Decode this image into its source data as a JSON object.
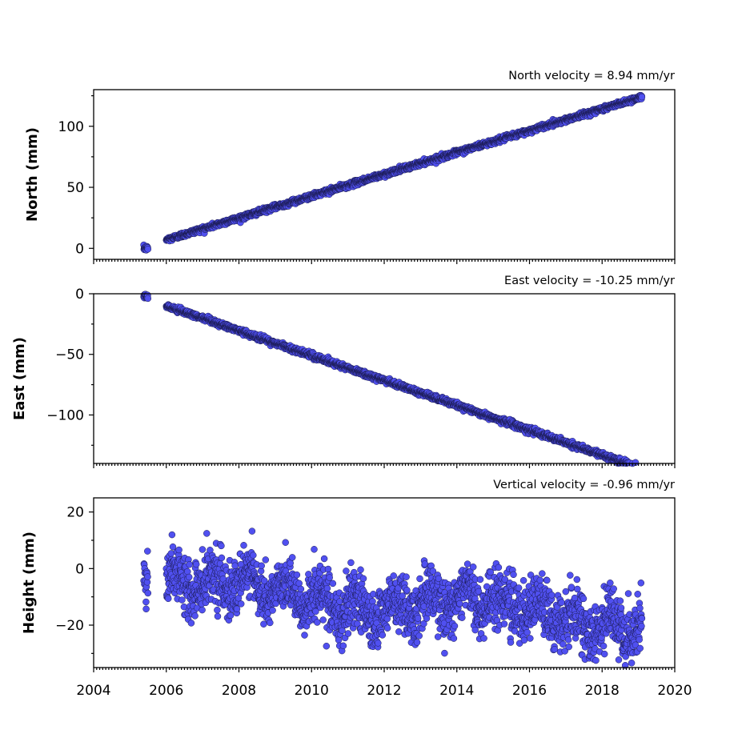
{
  "chart_data": [
    {
      "type": "scatter",
      "title": "North velocity = 8.94 mm/yr",
      "ylabel": "North (mm)",
      "xlim": [
        2004,
        2020
      ],
      "ylim": [
        -9,
        130
      ],
      "yticks": [
        0,
        50,
        100
      ],
      "tick_labels": [
        "0",
        "50",
        "100"
      ],
      "color": "#5050f0",
      "start": 2005.38,
      "end": 2019.1,
      "series": [
        {
          "trend": {
            "velocity_mm_per_yr": 8.94,
            "value_at_2006": 7.0
          },
          "gap": [
            2005.5,
            2006.0
          ],
          "noise_mm": 1.0
        }
      ]
    },
    {
      "type": "scatter",
      "title": "East velocity = -10.25 mm/yr",
      "ylabel": "East (mm)",
      "xlim": [
        2004,
        2020
      ],
      "ylim": [
        -140,
        0
      ],
      "yticks": [
        0,
        -50,
        -100
      ],
      "tick_labels": [
        "0",
        "−50",
        "−100"
      ],
      "color": "#5050f0",
      "start": 2005.38,
      "end": 2019.1,
      "series": [
        {
          "trend": {
            "velocity_mm_per_yr": -10.25,
            "value_at_2006": -10.0
          },
          "gap": [
            2005.5,
            2006.0
          ],
          "noise_mm": 1.1
        }
      ]
    },
    {
      "type": "scatter",
      "title": "Vertical velocity = -0.96 mm/yr",
      "ylabel": "Height (mm)",
      "xlim": [
        2004,
        2020
      ],
      "ylim": [
        -35,
        25
      ],
      "yticks": [
        20,
        0,
        -20
      ],
      "tick_labels": [
        "20",
        "0",
        "−20"
      ],
      "color": "#5050f0",
      "start": 2005.38,
      "end": 2019.1,
      "series": [
        {
          "trend": {
            "velocity_mm_per_yr": -0.96,
            "value_at_2006": -6.0
          },
          "gap": [
            2005.5,
            2006.0
          ],
          "noise_mm": 5.0
        }
      ]
    }
  ],
  "x_axis": {
    "ticks": [
      2004,
      2006,
      2008,
      2010,
      2012,
      2014,
      2016,
      2018,
      2020
    ],
    "tick_labels": [
      "2004",
      "2006",
      "2008",
      "2010",
      "2012",
      "2014",
      "2016",
      "2018",
      "2020"
    ]
  }
}
